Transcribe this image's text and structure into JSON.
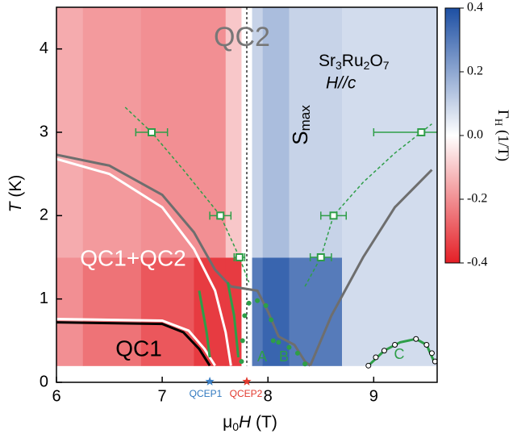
{
  "chart_data": {
    "type": "phase-diagram",
    "xlabel": [
      "μ",
      "0",
      "H",
      " (T)"
    ],
    "ylabel": [
      "T",
      " (K)"
    ],
    "xlim": [
      6,
      9.6
    ],
    "ylim": [
      0,
      4.5
    ],
    "xticks": [
      6,
      7,
      8,
      9
    ],
    "yticks": [
      0,
      1,
      2,
      3,
      4
    ],
    "colorbar": {
      "label": [
        "Γ",
        "H",
        " (1/T)"
      ],
      "lim": [
        -0.4,
        0.4
      ],
      "ticks": [
        {
          "value": 0.4,
          "label": "0.4"
        },
        {
          "value": 0.2,
          "label": "0.2"
        },
        {
          "value": 0,
          "label": "0.0"
        },
        -0.2,
        -0.4
      ],
      "colormap": [
        "#e41f26",
        "#ffffff",
        "#1d4fa3"
      ]
    },
    "heatmap": {
      "x_edges": [
        6.0,
        6.25,
        6.8,
        7.3,
        7.6,
        7.75,
        7.85,
        7.95,
        8.2,
        8.7,
        9.6
      ],
      "y_edges": [
        0.2,
        1.5,
        4.5
      ],
      "values": [
        [
          -0.2,
          -0.25,
          -0.3,
          -0.35,
          -0.35,
          0.0,
          0.3,
          0.35,
          0.3,
          0.08
        ],
        [
          -0.15,
          -0.18,
          -0.2,
          -0.2,
          -0.1,
          0.0,
          0.1,
          0.15,
          0.1,
          0.08
        ]
      ]
    },
    "smax": [
      "S",
      "max"
    ],
    "compound": [
      "Sr",
      "3",
      "Ru",
      "2",
      "O",
      "7"
    ],
    "field_direction": "H//c",
    "annotations": [
      "QC2",
      "QC1+QC2",
      "QC1",
      "A",
      "B",
      "C",
      "QCEP1",
      "QCEP2"
    ],
    "smax_x": 7.8,
    "curves": [
      {
        "color": "#6e6e6e",
        "dashed": false,
        "x": [
          6.0,
          6.5,
          7.0,
          7.3,
          7.5,
          7.65,
          7.9,
          8.0,
          8.1,
          8.25,
          8.35,
          8.4
        ],
        "y": [
          2.73,
          2.6,
          2.25,
          1.8,
          1.35,
          1.15,
          1.1,
          0.85,
          0.55,
          0.45,
          0.25,
          0.2
        ]
      },
      {
        "color": "#ffffff",
        "dashed": false,
        "x": [
          6.0,
          6.5,
          7.0,
          7.3,
          7.5,
          7.6,
          7.65
        ],
        "y": [
          2.68,
          2.5,
          2.1,
          1.6,
          1.1,
          0.6,
          0.2
        ]
      },
      {
        "color": "#6e6e6e",
        "dashed": false,
        "x": [
          8.4,
          8.6,
          8.9,
          9.2,
          9.55
        ],
        "y": [
          0.2,
          0.8,
          1.5,
          2.1,
          2.55
        ]
      },
      {
        "color": "#ffffff",
        "dashed": false,
        "x": [
          6.0,
          7.0,
          7.25,
          7.4,
          7.5
        ],
        "y": [
          0.76,
          0.74,
          0.62,
          0.4,
          0.2
        ]
      },
      {
        "color": "#000000",
        "dashed": false,
        "x": [
          6.0,
          7.0,
          7.2,
          7.35,
          7.45
        ],
        "y": [
          0.72,
          0.7,
          0.6,
          0.4,
          0.2
        ]
      },
      {
        "color": "#2e9e48",
        "dashed": true,
        "x": [
          6.65,
          6.9,
          7.2,
          7.55,
          7.73,
          7.82
        ],
        "y": [
          3.3,
          3.0,
          2.55,
          2.0,
          1.5,
          1.2
        ]
      },
      {
        "color": "#2e9e48",
        "dashed": true,
        "x": [
          8.35,
          8.5,
          8.62,
          8.9,
          9.2,
          9.55
        ],
        "y": [
          1.15,
          1.5,
          2.0,
          2.4,
          2.75,
          3.1
        ]
      },
      {
        "color": "#2e9e48",
        "dashed": false,
        "x": [
          7.35,
          7.42,
          7.45
        ],
        "y": [
          1.1,
          0.6,
          0.3
        ]
      },
      {
        "color": "#2e9e48",
        "dashed": false,
        "x": [
          7.62,
          7.68,
          7.72
        ],
        "y": [
          1.2,
          0.8,
          0.3
        ]
      },
      {
        "color": "#2e9e48",
        "dashed": false,
        "x": [
          8.95,
          9.1,
          9.25,
          9.4,
          9.5,
          9.57
        ],
        "y": [
          0.2,
          0.38,
          0.48,
          0.52,
          0.45,
          0.25
        ]
      }
    ],
    "series": [
      {
        "marker": "square",
        "color": "#2e9e48",
        "x": [
          6.9,
          7.55,
          7.73,
          8.5,
          8.62,
          9.45
        ],
        "y": [
          3.0,
          2.0,
          1.5,
          1.5,
          2.0,
          3.0
        ],
        "xerr": [
          0.15,
          0.1,
          0.05,
          0.1,
          0.12,
          0.45
        ]
      },
      {
        "marker": "circle",
        "color": "#2e9e48",
        "x": [
          7.75,
          7.76,
          7.78,
          7.82,
          7.9,
          7.98,
          8.03,
          8.05,
          8.1,
          8.2,
          8.28,
          8.35
        ],
        "y": [
          0.25,
          0.5,
          0.8,
          0.95,
          0.98,
          0.92,
          0.75,
          0.5,
          0.48,
          0.42,
          0.35,
          0.22
        ]
      },
      {
        "marker": "circle-open",
        "color": "#000000",
        "x": [
          8.95,
          9.02,
          9.1,
          9.2,
          9.4,
          9.5,
          9.55,
          9.58
        ],
        "y": [
          0.2,
          0.3,
          0.38,
          0.45,
          0.52,
          0.45,
          0.35,
          0.25
        ]
      },
      {
        "marker": "star",
        "color": "#3b7fc4",
        "x": [
          7.45
        ],
        "y": [
          0
        ]
      },
      {
        "marker": "star",
        "color": "#e23a2e",
        "x": [
          7.8
        ],
        "y": [
          0
        ]
      }
    ]
  }
}
